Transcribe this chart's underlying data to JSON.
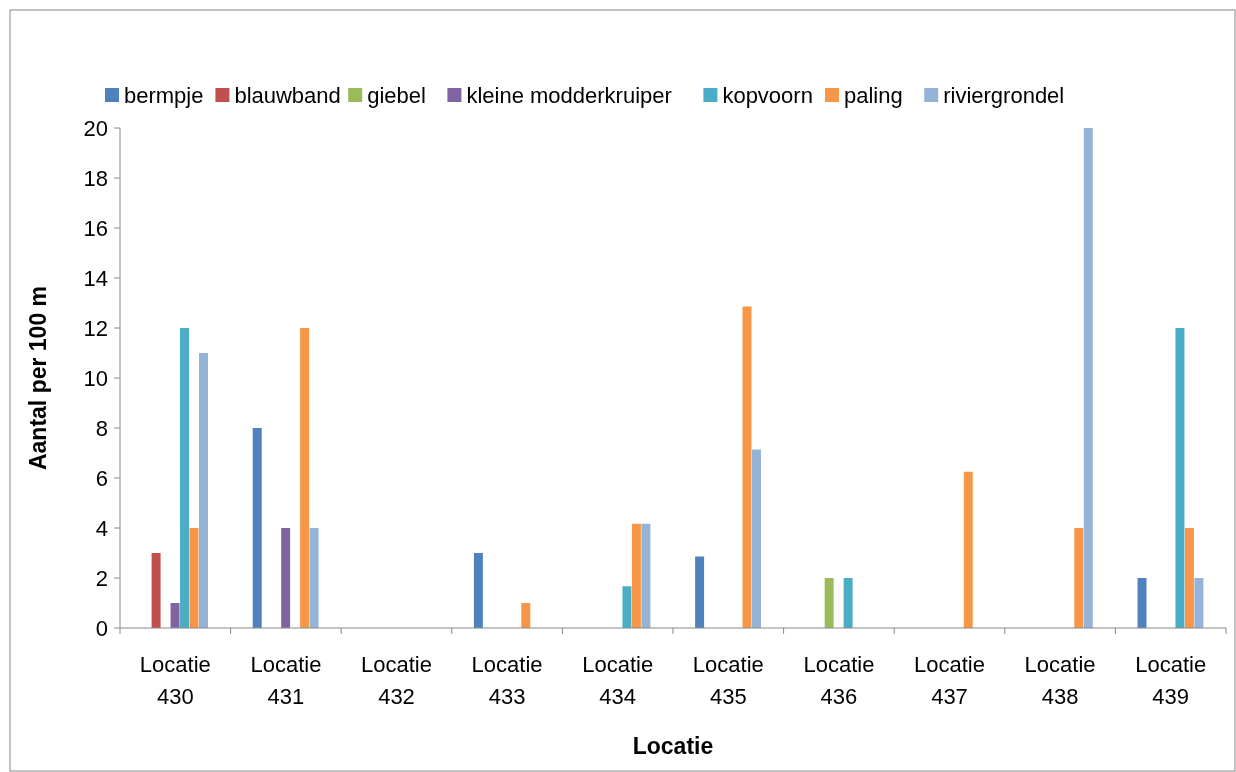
{
  "chart_data": {
    "type": "bar",
    "xlabel": "Locatie",
    "ylabel": "Aantal per 100 m",
    "categories": [
      "Locatie 430",
      "Locatie 431",
      "Locatie 432",
      "Locatie 433",
      "Locatie 434",
      "Locatie 435",
      "Locatie 436",
      "Locatie 437",
      "Locatie 438",
      "Locatie 439"
    ],
    "series": [
      {
        "name": "bermpje",
        "color": "#4f81bd",
        "values": [
          0,
          8,
          0,
          3,
          0,
          2.86,
          0,
          0,
          0,
          2
        ]
      },
      {
        "name": "blauwband",
        "color": "#c0504d",
        "values": [
          3,
          0,
          0,
          0,
          0,
          0,
          0,
          0,
          0,
          0
        ]
      },
      {
        "name": "giebel",
        "color": "#9bbb59",
        "values": [
          0,
          0,
          0,
          0,
          0,
          0,
          2,
          0,
          0,
          0
        ]
      },
      {
        "name": "kleine modderkruiper",
        "color": "#8064a2",
        "values": [
          1,
          4,
          0,
          0,
          0,
          0,
          0,
          0,
          0,
          0
        ]
      },
      {
        "name": "kopvoorn",
        "color": "#4bacc6",
        "values": [
          12,
          0,
          0,
          0,
          1.67,
          0,
          2,
          0,
          0,
          12
        ]
      },
      {
        "name": "paling",
        "color": "#f79646",
        "values": [
          4,
          12,
          0,
          1,
          4.17,
          12.86,
          0,
          6.25,
          4,
          4
        ]
      },
      {
        "name": "riviergrondel",
        "color": "#95b3d7",
        "values": [
          11,
          4,
          0,
          0,
          4.17,
          7.14,
          0,
          0,
          20,
          2
        ]
      }
    ],
    "ylim": [
      0,
      20
    ],
    "yticks": [
      0,
      2,
      4,
      6,
      8,
      10,
      12,
      14,
      16,
      18,
      20
    ],
    "grid": false,
    "legend": "top"
  }
}
